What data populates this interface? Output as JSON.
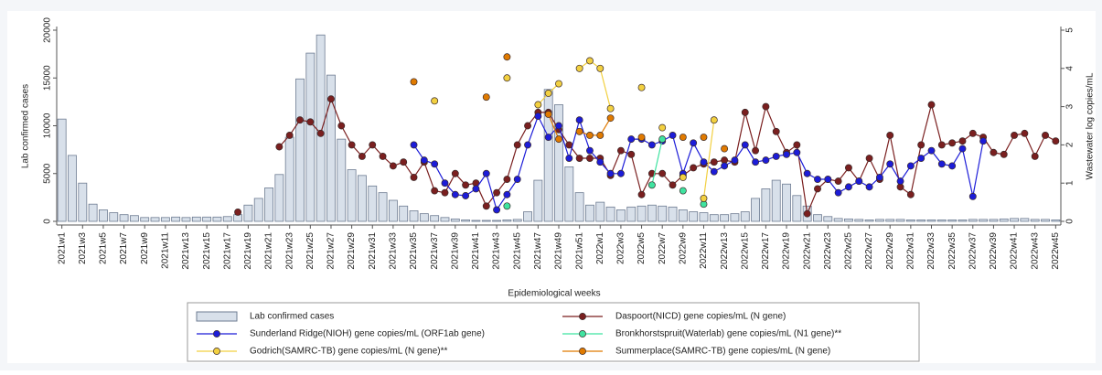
{
  "chart_data": {
    "type": "combo",
    "x_label": "Epidemiological weeks",
    "y_label": "Lab  confirmed cases",
    "y2_label": "Wastewater log copies/mL",
    "categories": [
      "2021w1",
      null,
      "2021w3",
      null,
      "2021w5",
      null,
      "2021w7",
      null,
      "2021w9",
      null,
      "2021w11",
      null,
      "2021w13",
      null,
      "2021w15",
      null,
      "2021w17",
      null,
      "2021w19",
      null,
      "2021w21",
      null,
      "2021w23",
      null,
      "2021w25",
      null,
      "2021w27",
      null,
      "2021w29",
      null,
      "2021w31",
      null,
      "2021w33",
      null,
      "2021w35",
      null,
      "2021w37",
      null,
      "2021w39",
      null,
      "2021w41",
      null,
      "2021w43",
      null,
      "2021w45",
      null,
      "2021w47",
      null,
      "2021w49",
      null,
      "2021w51",
      null,
      "2022w1",
      null,
      "2022w3",
      null,
      "2022w5",
      null,
      "2022w7",
      null,
      "2022w9",
      null,
      "2022w11",
      null,
      "2022w13",
      null,
      "2022w15",
      null,
      "2022w17",
      null,
      "2022w19",
      null,
      "2022w21",
      null,
      "2022w23",
      null,
      "2022w25",
      null,
      "2022w27",
      null,
      "2022w29",
      null,
      "2022w31",
      null,
      "2022w33",
      null,
      "2022w35",
      null,
      "2022w37",
      null,
      "2022w39",
      null,
      "2022w41",
      null,
      "2022w43",
      null,
      "2022w45"
    ],
    "ylim": [
      0,
      20000
    ],
    "yticks": [
      0,
      5000,
      10000,
      15000,
      20000
    ],
    "y2lim": [
      0,
      5
    ],
    "y2ticks": [
      0,
      1,
      2,
      3,
      4,
      5
    ],
    "legend": "bottom",
    "series": [
      {
        "name": "Lab  confirmed cases",
        "type": "bar",
        "color": "#d8e0ea",
        "values": [
          10700,
          6900,
          4000,
          1800,
          1200,
          900,
          700,
          600,
          400,
          400,
          400,
          450,
          400,
          450,
          450,
          450,
          500,
          700,
          1700,
          2400,
          3500,
          4900,
          8800,
          14900,
          17600,
          19500,
          15300,
          8600,
          5400,
          4800,
          3700,
          3000,
          2200,
          1600,
          1100,
          800,
          600,
          400,
          250,
          150,
          100,
          100,
          100,
          150,
          200,
          1000,
          4300,
          13800,
          12200,
          5700,
          3000,
          1700,
          2000,
          1500,
          1200,
          1500,
          1600,
          1700,
          1600,
          1500,
          1200,
          1000,
          900,
          700,
          700,
          800,
          1000,
          2400,
          3400,
          4300,
          3900,
          2700,
          1600,
          700,
          500,
          300,
          250,
          200,
          150,
          200,
          200,
          200,
          150,
          150,
          150,
          150,
          150,
          150,
          200,
          200,
          200,
          250,
          300,
          300,
          200,
          200,
          150
        ]
      },
      {
        "name": "Daspoort(NICD) gene copies/mL (N gene)",
        "type": "line",
        "axis": "y2",
        "color": "#7a1f1f",
        "values": [
          null,
          null,
          null,
          null,
          null,
          null,
          null,
          null,
          null,
          null,
          null,
          null,
          null,
          null,
          null,
          null,
          null,
          0.24,
          null,
          null,
          null,
          1.95,
          2.25,
          2.65,
          2.6,
          2.3,
          3.2,
          2.5,
          2.0,
          1.7,
          2.0,
          1.7,
          1.45,
          1.55,
          1.15,
          1.55,
          0.8,
          0.75,
          1.25,
          0.95,
          1.0,
          0.4,
          0.75,
          1.1,
          2.0,
          2.5,
          2.85,
          2.85,
          2.4,
          2.0,
          1.65,
          1.65,
          1.65,
          1.2,
          1.85,
          1.75,
          0.7,
          1.25,
          1.25,
          0.95,
          1.2,
          1.4,
          1.5,
          1.55,
          1.6,
          1.55,
          2.85,
          1.85,
          3.0,
          2.35,
          1.8,
          2.0,
          0.2,
          0.85,
          1.1,
          1.05,
          1.4,
          1.05,
          1.65,
          1.1,
          2.25,
          0.9,
          0.7,
          2.0,
          3.05,
          2.0,
          2.05,
          2.1,
          2.3,
          2.2,
          1.8,
          1.75,
          2.25,
          2.3,
          1.7,
          2.25,
          2.1
        ]
      },
      {
        "name": "Sunderland Ridge(NIOH) gene copies/mL (ORF1ab gene)",
        "type": "line",
        "axis": "y2",
        "color": "#1c1cd8",
        "values": [
          null,
          null,
          null,
          null,
          null,
          null,
          null,
          null,
          null,
          null,
          null,
          null,
          null,
          null,
          null,
          null,
          null,
          null,
          null,
          null,
          null,
          null,
          null,
          null,
          null,
          null,
          null,
          null,
          null,
          null,
          null,
          null,
          null,
          null,
          2.0,
          1.6,
          1.5,
          1.0,
          0.7,
          0.67,
          0.85,
          1.25,
          0.3,
          0.7,
          1.1,
          2.0,
          2.75,
          2.2,
          2.5,
          1.65,
          2.65,
          1.85,
          1.55,
          1.25,
          1.25,
          2.15,
          2.15,
          2.0,
          2.1,
          2.25,
          1.25,
          2.05,
          1.55,
          1.3,
          1.45,
          1.6,
          2.0,
          1.55,
          1.6,
          1.7,
          1.75,
          1.8,
          1.25,
          1.1,
          1.1,
          0.75,
          0.9,
          1.05,
          0.9,
          1.15,
          1.5,
          1.05,
          1.45,
          1.65,
          1.85,
          1.5,
          1.45,
          1.9,
          0.65,
          2.1,
          null,
          null,
          null,
          null,
          null,
          null,
          null
        ]
      },
      {
        "name": " Bronkhorstspruit(Waterlab) gene copies/mL (N1 gene)**",
        "type": "line",
        "axis": "y2",
        "color": "#3fe3a0",
        "values": [
          null,
          null,
          null,
          null,
          null,
          null,
          null,
          null,
          null,
          null,
          null,
          null,
          null,
          null,
          null,
          null,
          null,
          null,
          null,
          null,
          null,
          null,
          null,
          null,
          null,
          null,
          null,
          null,
          null,
          null,
          null,
          null,
          null,
          null,
          null,
          null,
          null,
          null,
          null,
          null,
          null,
          null,
          null,
          0.4,
          null,
          null,
          null,
          null,
          null,
          null,
          null,
          null,
          null,
          null,
          null,
          null,
          null,
          0.95,
          2.15,
          null,
          0.8,
          null,
          0.45,
          null,
          null,
          null,
          null,
          null,
          null,
          null,
          null,
          null,
          null,
          null,
          null,
          null,
          null,
          null,
          null,
          null,
          null,
          null,
          null,
          null,
          null,
          null,
          null,
          null,
          null,
          null,
          null,
          null,
          null,
          null,
          null,
          null,
          null
        ]
      },
      {
        "name": "Godrich(SAMRC-TB) gene copies/mL (N gene)**",
        "type": "line",
        "axis": "y2",
        "color": "#f2d040",
        "values": [
          null,
          null,
          null,
          null,
          null,
          null,
          null,
          null,
          null,
          null,
          null,
          null,
          null,
          null,
          null,
          null,
          null,
          null,
          null,
          null,
          null,
          null,
          null,
          null,
          null,
          null,
          null,
          null,
          null,
          null,
          null,
          null,
          null,
          null,
          null,
          null,
          3.15,
          null,
          null,
          null,
          null,
          null,
          null,
          3.75,
          null,
          null,
          3.05,
          3.35,
          3.6,
          null,
          4.0,
          4.2,
          4.0,
          2.95,
          null,
          null,
          3.5,
          null,
          2.45,
          null,
          1.15,
          null,
          0.6,
          2.65,
          null,
          null,
          null,
          null,
          null,
          null,
          null,
          null,
          null,
          null,
          null,
          null,
          null,
          null,
          null,
          null,
          null,
          null,
          null,
          null,
          null,
          null,
          null,
          null,
          null,
          null,
          null,
          null,
          null,
          null,
          null,
          null,
          null
        ]
      },
      {
        "name": "Summerplace(SAMRC-TB) gene copies/mL (N gene)",
        "type": "line",
        "axis": "y2",
        "color": "#e07a00",
        "values": [
          null,
          null,
          null,
          null,
          null,
          null,
          null,
          null,
          null,
          null,
          null,
          null,
          null,
          null,
          null,
          null,
          null,
          null,
          null,
          null,
          null,
          null,
          null,
          null,
          null,
          null,
          null,
          null,
          null,
          null,
          null,
          null,
          null,
          null,
          3.65,
          null,
          null,
          null,
          null,
          null,
          null,
          3.25,
          null,
          4.3,
          null,
          null,
          null,
          2.8,
          2.15,
          null,
          2.35,
          2.25,
          2.25,
          2.7,
          null,
          null,
          2.2,
          null,
          null,
          null,
          2.2,
          null,
          2.2,
          null,
          1.9,
          null,
          null,
          null,
          null,
          null,
          null,
          null,
          null,
          null,
          null,
          null,
          null,
          null,
          null,
          null,
          null,
          null,
          null,
          null,
          null,
          null,
          null,
          null,
          null,
          null,
          null,
          null,
          null,
          null,
          null,
          null,
          null
        ]
      }
    ]
  }
}
